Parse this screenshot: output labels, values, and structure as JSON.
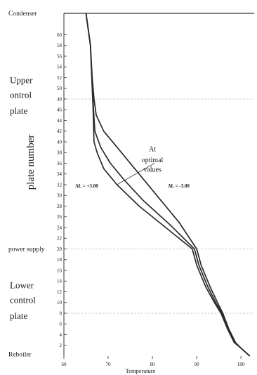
{
  "chart_data": {
    "type": "line",
    "xlabel": "Temperature",
    "ylabel": "plate number",
    "xlim": [
      60,
      103
    ],
    "ylim": [
      0,
      64
    ],
    "x_ticks": [
      60,
      70,
      80,
      90,
      100
    ],
    "y_ticks": [
      2,
      4,
      6,
      8,
      10,
      12,
      14,
      16,
      18,
      20,
      22,
      24,
      26,
      28,
      30,
      32,
      34,
      36,
      38,
      40,
      42,
      44,
      46,
      48,
      50,
      52,
      54,
      56,
      58,
      60
    ],
    "reference_lines": [
      {
        "y": 64,
        "style": "solid"
      },
      {
        "y": 48,
        "style": "dashed"
      },
      {
        "y": 20,
        "style": "dashed"
      },
      {
        "y": 8,
        "style": "dashed"
      }
    ],
    "side_labels": [
      {
        "text": "Condenser",
        "y": 64
      },
      {
        "text": "Upper",
        "y": 51.5
      },
      {
        "text": "ontrol",
        "y": 48.7
      },
      {
        "text": "plate",
        "y": 45.8
      },
      {
        "text": "power supply",
        "y": 20
      },
      {
        "text": "Lower",
        "y": 13.2
      },
      {
        "text": "control",
        "y": 10.4
      },
      {
        "text": "plate",
        "y": 7.5
      },
      {
        "text": "Reboiler",
        "y": 0.3
      }
    ],
    "annotations": [
      {
        "text": "At",
        "x": 80,
        "y": 38.2
      },
      {
        "text": "optimal",
        "x": 80,
        "y": 36.2
      },
      {
        "text": "values",
        "x": 80,
        "y": 34.4
      }
    ],
    "series": [
      {
        "label": "ΔL = +3.00",
        "label_pos": {
          "x": 62.6,
          "y": 31.5
        },
        "points": [
          [
            65,
            64
          ],
          [
            66,
            58
          ],
          [
            66.3,
            52
          ],
          [
            66.6,
            46
          ],
          [
            66.8,
            40
          ],
          [
            67.5,
            38
          ],
          [
            69,
            35
          ],
          [
            72,
            32
          ],
          [
            77,
            28
          ],
          [
            83,
            24
          ],
          [
            89,
            20
          ],
          [
            90,
            17
          ],
          [
            92,
            13
          ],
          [
            94,
            10
          ],
          [
            95.5,
            8
          ],
          [
            97,
            5
          ],
          [
            98.5,
            2.5
          ],
          [
            100,
            1.5
          ],
          [
            102,
            0
          ]
        ]
      },
      {
        "label": "",
        "points": [
          [
            65,
            64
          ],
          [
            66,
            58
          ],
          [
            66.3,
            52
          ],
          [
            66.7,
            46
          ],
          [
            67,
            42
          ],
          [
            68.3,
            39
          ],
          [
            70.5,
            36
          ],
          [
            73.5,
            33
          ],
          [
            78,
            29
          ],
          [
            84,
            24.5
          ],
          [
            89.5,
            20
          ],
          [
            90.5,
            17
          ],
          [
            92.5,
            13
          ],
          [
            94.3,
            10
          ],
          [
            95.7,
            8
          ],
          [
            97.2,
            5
          ],
          [
            98.7,
            2.5
          ],
          [
            100,
            1.5
          ],
          [
            102,
            0
          ]
        ]
      },
      {
        "label": "ΔL = -3.00",
        "label_pos": {
          "x": 83.5,
          "y": 31.5
        },
        "points": [
          [
            65,
            64
          ],
          [
            66,
            58
          ],
          [
            66.4,
            52
          ],
          [
            66.8,
            48
          ],
          [
            67.3,
            45
          ],
          [
            69,
            42
          ],
          [
            72,
            39
          ],
          [
            76,
            35
          ],
          [
            81,
            30
          ],
          [
            86,
            25
          ],
          [
            90,
            20
          ],
          [
            91,
            17
          ],
          [
            93,
            13
          ],
          [
            94.7,
            10
          ],
          [
            95.9,
            8
          ],
          [
            97.3,
            5
          ],
          [
            98.8,
            2.5
          ],
          [
            100,
            1.5
          ],
          [
            102,
            0
          ]
        ]
      }
    ],
    "pointer_line": {
      "from": {
        "x": 72,
        "y": 32
      },
      "to": {
        "x": 80.5,
        "y": 36
      }
    }
  }
}
